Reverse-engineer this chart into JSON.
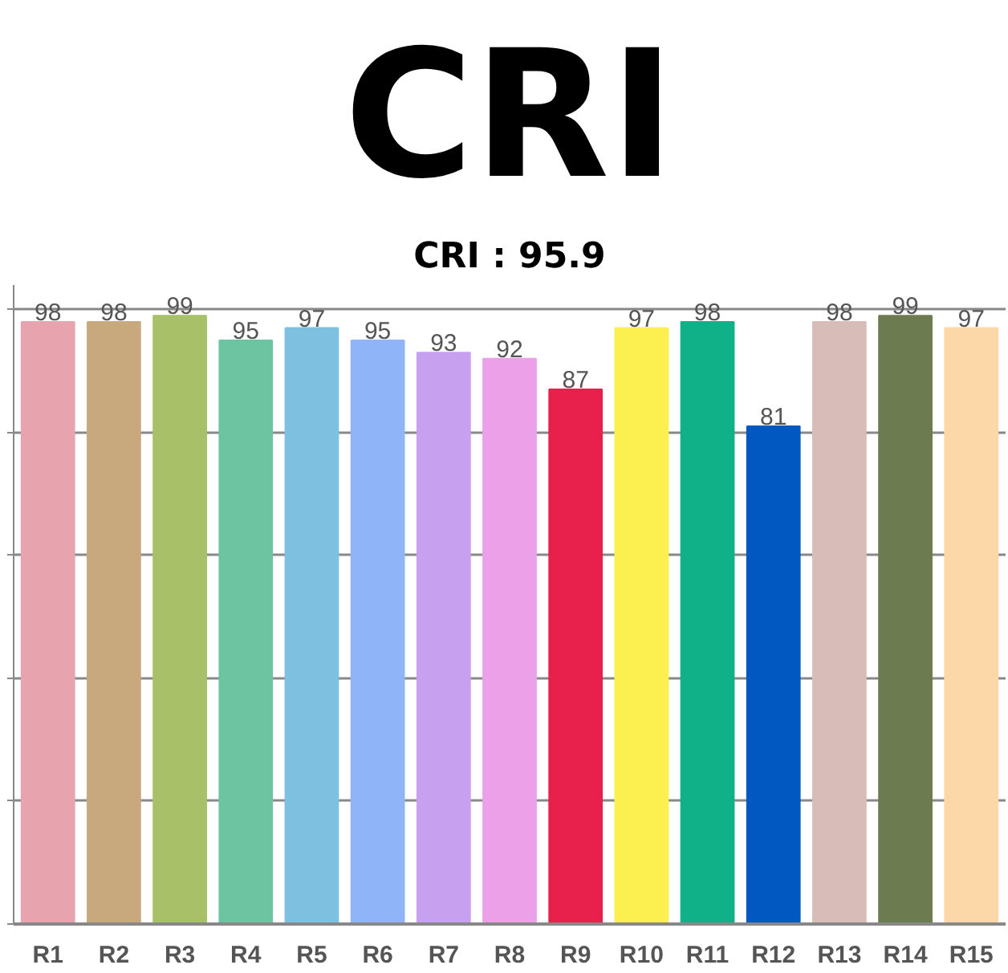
{
  "chart_data": {
    "type": "bar",
    "title": "CRI",
    "subtitle": "CRI : 95.9",
    "categories": [
      "R1",
      "R2",
      "R3",
      "R4",
      "R5",
      "R6",
      "R7",
      "R8",
      "R9",
      "R10",
      "R11",
      "R12",
      "R13",
      "R14",
      "R15"
    ],
    "values": [
      98,
      98,
      99,
      95,
      97,
      95,
      93,
      92,
      87,
      97,
      98,
      81,
      98,
      99,
      97
    ],
    "colors": [
      "#e8a4ae",
      "#c8a97e",
      "#a8c068",
      "#6cc4a0",
      "#7ec0e0",
      "#90b4f8",
      "#c8a0f0",
      "#eca0e8",
      "#e8204c",
      "#fcf050",
      "#10b088",
      "#0058c0",
      "#d8bcb8",
      "#6c7c50",
      "#fcd8a8"
    ],
    "ylim": [
      0,
      104
    ],
    "yticks": [
      {
        "value": 0,
        "label": null
      },
      {
        "value": 20,
        "label": null
      },
      {
        "value": 40,
        "label": null
      },
      {
        "value": 60,
        "label": null
      },
      {
        "value": 80,
        "label": null
      },
      {
        "value": 100,
        "label": null
      }
    ],
    "grid": "y",
    "data_labels": true
  }
}
